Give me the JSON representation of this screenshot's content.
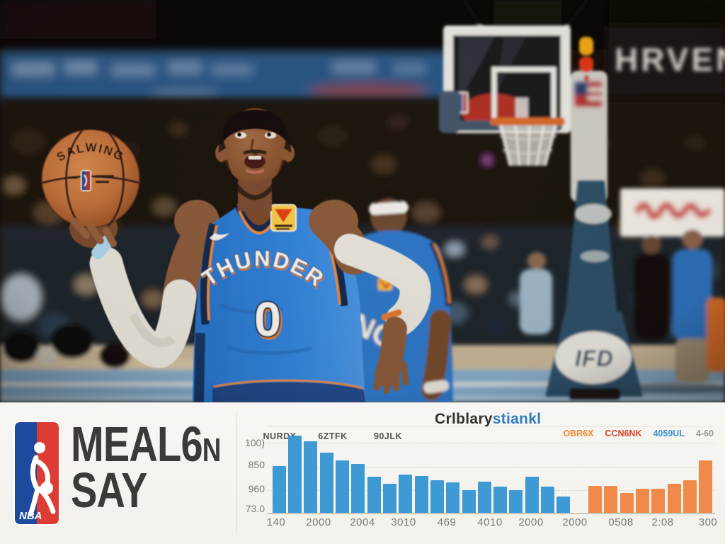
{
  "photo": {
    "ball_brand": "SALWING",
    "jersey_team": "THUNDER",
    "jersey_number": "0",
    "second_jersey_letters": "NO",
    "wall_banner_text": "HRVEN",
    "stanchion_logo_text": "IFD",
    "colors": {
      "jersey_blue": "#2f7fd6",
      "trim_navy": "#16294e",
      "trim_orange": "#e8832a",
      "ball_orange": "#c9793a",
      "court_blue": "#84a9c6"
    }
  },
  "banner": {
    "nba_logo_text": "NBA",
    "wordmark_line1": "MEAL6",
    "wordmark_line1_suffix": "N",
    "wordmark_line2": "SAY",
    "logo_blue": "#1d4a9c",
    "logo_red": "#dd3c35"
  },
  "chart_data": {
    "type": "bar",
    "title_dark": "Crlblary",
    "title_blue": "stiankl",
    "legend": [
      {
        "label": "OBR6X",
        "color": "#ef8a2e"
      },
      {
        "label": "CCN6NK",
        "color": "#d9452b"
      },
      {
        "label": "4059UL",
        "color": "#3e93d6"
      },
      {
        "label": "4-60",
        "color": "#9b9892"
      }
    ],
    "inner_labels": [
      "NURDX",
      "6ZTFK",
      "90JLK"
    ],
    "y_ticks": [
      "100)",
      "850",
      "960",
      "73.0"
    ],
    "x_ticks": [
      "140",
      "2000",
      "2004",
      "3010",
      "469",
      "4010",
      "2000",
      "2000",
      "0508",
      "2:08",
      "300"
    ],
    "ylim": [
      0,
      100
    ],
    "gap_slots": 1,
    "grid": true,
    "legend_position": "top-right",
    "series": [
      {
        "name": "blue",
        "color": "#3e9ad5",
        "values": [
          54,
          89,
          83,
          70,
          61,
          57,
          42,
          34,
          44,
          43,
          38,
          35,
          26,
          36,
          30,
          26,
          42,
          30,
          19
        ]
      },
      {
        "name": "orange",
        "color": "#f0894a",
        "values": [
          31,
          31,
          23,
          28,
          28,
          34,
          38,
          61
        ]
      }
    ]
  }
}
